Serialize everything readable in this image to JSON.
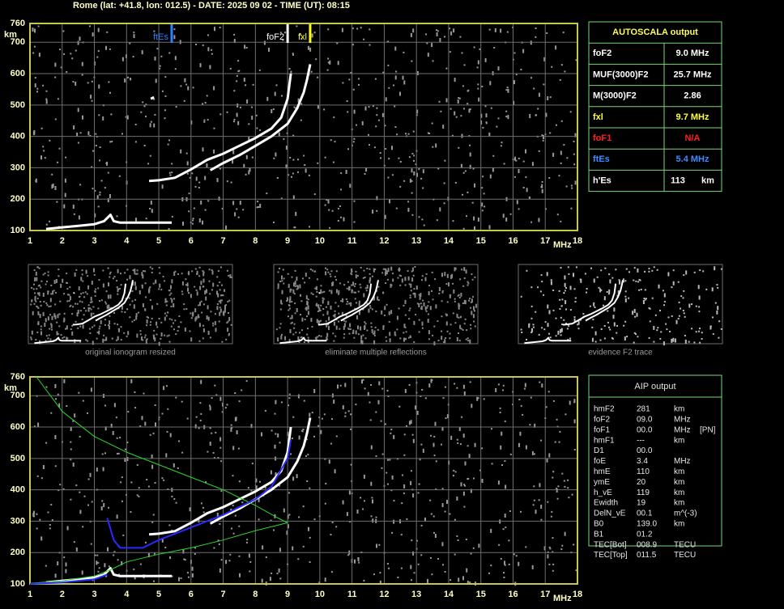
{
  "header": "Rome (lat: +41.8, lon: 012.5) - DATE: 2025 09 02 - TIME (UT): 08:15",
  "chart_data": [
    {
      "type": "line",
      "xlim": [
        1,
        18
      ],
      "ylim": [
        100,
        760
      ],
      "xticks": [
        1,
        2,
        3,
        4,
        5,
        6,
        7,
        8,
        9,
        10,
        11,
        12,
        13,
        14,
        15,
        16,
        17,
        18
      ],
      "yticks": [
        100,
        200,
        300,
        400,
        500,
        600,
        700,
        760
      ],
      "x_label": "MHz",
      "y_label": "km",
      "grid": true,
      "markers": [
        {
          "name": "ftEs",
          "x": 5.4,
          "color": "#2f7fff"
        },
        {
          "name": "foF2",
          "x": 9.0,
          "color": "#ffffff"
        },
        {
          "name": "fxl",
          "x": 9.7,
          "color": "#ffff00"
        }
      ],
      "series": [
        {
          "color": "#ffffff",
          "width": 3,
          "x": [
            1.5,
            2,
            2.5,
            3,
            3.3,
            3.5,
            3.6,
            3.8,
            4,
            4.5,
            5.4
          ],
          "values": [
            105,
            110,
            115,
            120,
            130,
            150,
            130,
            125,
            125,
            125,
            125
          ]
        },
        {
          "color": "#ffffff",
          "width": 3,
          "x": [
            4.7,
            5,
            5.5,
            6,
            6.5,
            7,
            7.5,
            8,
            8.5,
            8.8,
            9,
            9.1
          ],
          "values": [
            258,
            260,
            268,
            295,
            325,
            345,
            370,
            395,
            425,
            460,
            520,
            600
          ]
        },
        {
          "color": "#ffffff",
          "width": 3,
          "x": [
            6.6,
            7,
            7.5,
            8,
            8.5,
            9,
            9.3,
            9.5,
            9.6,
            9.7
          ],
          "values": [
            292,
            315,
            340,
            370,
            400,
            440,
            490,
            540,
            580,
            630
          ]
        },
        {
          "color": "#ffffff",
          "width": 3,
          "x": [
            4.75,
            4.85
          ],
          "values": [
            520,
            525
          ]
        }
      ]
    },
    {
      "type": "line",
      "xlim": [
        1,
        18
      ],
      "ylim": [
        100,
        760
      ],
      "xticks": [
        1,
        2,
        3,
        4,
        5,
        6,
        7,
        8,
        9,
        10,
        11,
        12,
        13,
        14,
        15,
        16,
        17,
        18
      ],
      "yticks": [
        100,
        200,
        300,
        400,
        500,
        600,
        700,
        760
      ],
      "x_label": "MHz",
      "y_label": "km",
      "grid": true,
      "series": [
        {
          "color": "#ffffff",
          "width": 3,
          "x": [
            1.5,
            2,
            2.5,
            3,
            3.3,
            3.5,
            3.6,
            3.8,
            4,
            4.5,
            5.4
          ],
          "values": [
            105,
            110,
            115,
            120,
            130,
            150,
            130,
            125,
            125,
            125,
            125
          ]
        },
        {
          "color": "#ffffff",
          "width": 3,
          "x": [
            4.7,
            5,
            5.5,
            6,
            6.5,
            7,
            7.5,
            8,
            8.5,
            8.8,
            9,
            9.1
          ],
          "values": [
            258,
            260,
            268,
            295,
            325,
            345,
            370,
            395,
            425,
            460,
            520,
            600
          ]
        },
        {
          "color": "#ffffff",
          "width": 3,
          "x": [
            6.6,
            7,
            7.5,
            8,
            8.5,
            9,
            9.3,
            9.5,
            9.6,
            9.7
          ],
          "values": [
            292,
            315,
            340,
            370,
            400,
            440,
            490,
            540,
            580,
            630
          ]
        },
        {
          "color": "#2bd92b",
          "width": 1,
          "x": [
            1.2,
            2,
            3,
            4,
            5,
            6,
            7,
            8,
            8.7,
            9,
            8,
            7,
            6,
            5,
            4,
            3.5,
            3,
            2,
            1
          ],
          "values": [
            760,
            650,
            570,
            520,
            480,
            440,
            400,
            350,
            310,
            295,
            270,
            240,
            215,
            195,
            170,
            145,
            125,
            110,
            102
          ]
        },
        {
          "color": "#2a2aff",
          "width": 2,
          "x": [
            1,
            2,
            3,
            3.4
          ],
          "values": [
            100,
            105,
            115,
            130
          ]
        },
        {
          "color": "#2a2aff",
          "width": 2,
          "x": [
            3.4,
            3.6,
            3.8,
            4.5,
            5,
            6,
            7,
            8,
            8.5,
            9,
            9.1
          ],
          "values": [
            310,
            240,
            215,
            215,
            240,
            280,
            320,
            370,
            410,
            500,
            560
          ]
        }
      ]
    }
  ],
  "thumbnails": [
    "original ionogram resized",
    "eliminate multiple reflections",
    "evidence F2 trace"
  ],
  "autoscala": {
    "title": "AUTOSCALA output",
    "rows": [
      {
        "label": "foF2",
        "value": "9.0 MHz",
        "color": "#ffffff"
      },
      {
        "label": "MUF(3000)F2",
        "value": "25.7 MHz",
        "color": "#ffffff"
      },
      {
        "label": "M(3000)F2",
        "value": "2.86",
        "color": "#ffffff"
      },
      {
        "label": "fxl",
        "value": "9.7 MHz",
        "color": "#ffff3c"
      },
      {
        "label": "foF1",
        "value": "N/A",
        "color": "#ff2020"
      },
      {
        "label": "ftEs",
        "value": "5.4 MHz",
        "color": "#3c8cff"
      },
      {
        "label": "h'Es",
        "value": "113",
        "unit": "km",
        "color": "#ffffff"
      }
    ]
  },
  "aip": {
    "title": "AIP output",
    "rows": [
      [
        "hmF2",
        "281",
        "km",
        ""
      ],
      [
        "foF2",
        "09.0",
        "MHz",
        ""
      ],
      [
        "foF1",
        "00.0",
        "MHz",
        "[PN]"
      ],
      [
        "hmF1",
        "---",
        "km",
        ""
      ],
      [
        "D1",
        "00.0",
        "",
        ""
      ],
      [
        "foE",
        "3.4",
        "MHz",
        ""
      ],
      [
        "hmE",
        "110",
        "km",
        ""
      ],
      [
        "ymE",
        "20",
        "km",
        ""
      ],
      [
        "h_vE",
        "119",
        "km",
        ""
      ],
      [
        "Ewidth",
        "19",
        "km",
        ""
      ],
      [
        "DelN_vE",
        "00.1",
        "m^(-3)",
        ""
      ],
      [
        "B0",
        "139.0",
        "km",
        ""
      ],
      [
        "B1",
        "01.2",
        "",
        ""
      ],
      [
        "TEC[Bot]",
        "008.9",
        "TECU",
        ""
      ],
      [
        "TEC[Top]",
        "011.5",
        "TECU",
        ""
      ]
    ]
  }
}
